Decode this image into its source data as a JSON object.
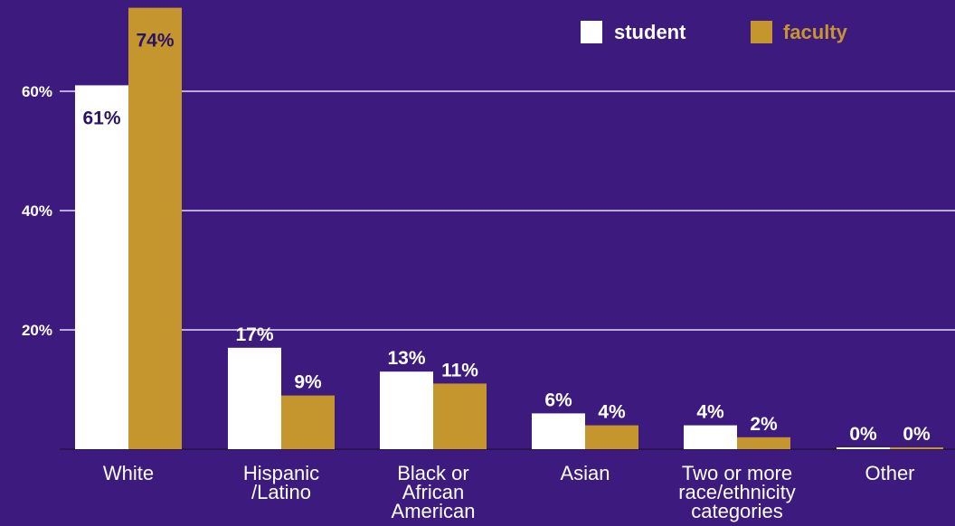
{
  "colors": {
    "background": "#3d1a7e",
    "student": "#ffffff",
    "faculty": "#c6962e",
    "grid": "#b9a9dc",
    "label_dark": "#2a1266"
  },
  "legend": {
    "student": "student",
    "faculty": "faculty"
  },
  "chart_data": {
    "type": "bar",
    "categories": [
      [
        "White"
      ],
      [
        "Hispanic",
        "/Latino"
      ],
      [
        "Black or",
        "African",
        "American"
      ],
      [
        "Asian"
      ],
      [
        "Two or more",
        "race/ethnicity",
        "categories"
      ],
      [
        "Other"
      ]
    ],
    "series": [
      {
        "name": "student",
        "values": [
          61,
          17,
          13,
          6,
          4,
          0
        ],
        "labels": [
          "61%",
          "17%",
          "13%",
          "6%",
          "4%",
          "0%"
        ]
      },
      {
        "name": "faculty",
        "values": [
          74,
          9,
          11,
          4,
          2,
          0
        ],
        "labels": [
          "74%",
          "9%",
          "11%",
          "4%",
          "2%",
          "0%"
        ]
      }
    ],
    "yticks": [
      20,
      40,
      60
    ],
    "ytick_labels": [
      "20%",
      "40%",
      "60%"
    ],
    "ylim": [
      0,
      74
    ],
    "grid": true,
    "legend_position": "top-right"
  }
}
